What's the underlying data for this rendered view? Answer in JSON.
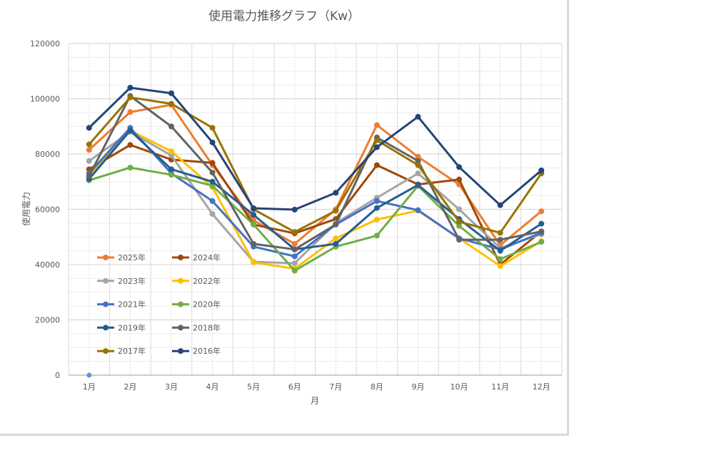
{
  "chart_data": {
    "type": "line",
    "title": "使用電力推移グラフ（Kw）",
    "xlabel": "月",
    "ylabel": "使用電力",
    "ylim": [
      0,
      120000
    ],
    "yticks": [
      "0",
      "20000",
      "40000",
      "60000",
      "80000",
      "100000",
      "120000"
    ],
    "categories": [
      "1月",
      "2月",
      "3月",
      "4月",
      "5月",
      "6月",
      "7月",
      "8月",
      "9月",
      "10月",
      "11月",
      "12月"
    ],
    "grid": true,
    "legend_position": "inside-bottom-left",
    "series": [
      {
        "name": "2025年",
        "color": "#ed7d31",
        "values": [
          81500,
          95200,
          97800,
          76000,
          56000,
          47500,
          60000,
          90500,
          79000,
          69000,
          47000,
          59300
        ]
      },
      {
        "name": "2024年",
        "color": "#9e480e",
        "values": [
          74500,
          83300,
          78000,
          76800,
          54500,
          51300,
          56500,
          76000,
          69000,
          70800,
          40000,
          52000
        ]
      },
      {
        "name": "2023年",
        "color": "#a5a5a5",
        "values": [
          77500,
          88000,
          79500,
          58300,
          41000,
          40500,
          55000,
          64200,
          73000,
          60000,
          46000,
          51000
        ]
      },
      {
        "name": "2022年",
        "color": "#ffc000",
        "values": [
          72000,
          88500,
          81000,
          68000,
          40800,
          38500,
          49500,
          56300,
          59500,
          49500,
          39500,
          48500
        ]
      },
      {
        "name": "2021年",
        "color": "#4472c4",
        "values": [
          73000,
          89500,
          73000,
          63000,
          46500,
          43000,
          54500,
          63000,
          59700,
          49500,
          45500,
          51500
        ]
      },
      {
        "name": "2020年",
        "color": "#70ad47",
        "values": [
          70500,
          75100,
          72500,
          68500,
          54500,
          37800,
          46500,
          50500,
          68500,
          54000,
          42000,
          48200
        ]
      },
      {
        "name": "2019年",
        "color": "#255e91",
        "values": [
          71000,
          88500,
          74500,
          70000,
          58000,
          45500,
          47500,
          60500,
          68800,
          56500,
          45000,
          54800
        ]
      },
      {
        "name": "2018年",
        "color": "#636363",
        "values": [
          72000,
          101000,
          90000,
          73300,
          47500,
          45500,
          54500,
          86000,
          77500,
          49000,
          49000,
          52000
        ]
      },
      {
        "name": "2017年",
        "color": "#997300",
        "values": [
          83500,
          100500,
          98200,
          89500,
          60000,
          51800,
          59500,
          85000,
          76000,
          55500,
          51500,
          73000
        ]
      },
      {
        "name": "2016年",
        "color": "#264478",
        "values": [
          89500,
          104000,
          102000,
          84200,
          60400,
          59900,
          66000,
          82500,
          93500,
          75300,
          61500,
          74100
        ]
      }
    ],
    "stray_point": {
      "category": "1月",
      "value": 0,
      "color": "#5b9bd5"
    }
  }
}
